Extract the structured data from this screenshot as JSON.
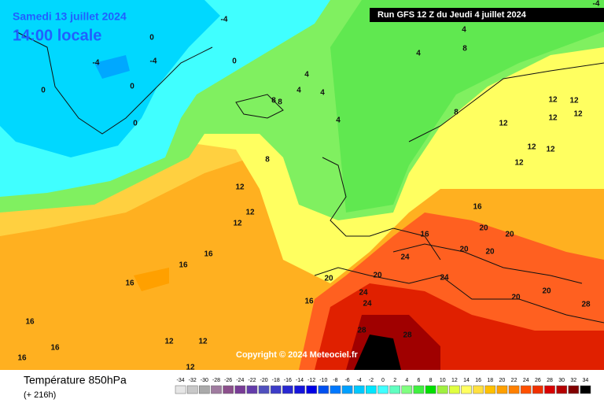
{
  "header": {
    "date": "Samedi 13 juillet 2024",
    "time": "14:00 locale",
    "run": "Run GFS 12 Z du Jeudi 4 juillet 2024"
  },
  "copyright": "Copyright © 2024 Meteociel.fr",
  "footer": {
    "title": "Température 850hPa",
    "lead": "(+ 216h)"
  },
  "scale": {
    "values": [
      -34,
      -32,
      -30,
      -28,
      -26,
      -24,
      -22,
      -20,
      -18,
      -16,
      -14,
      -12,
      -10,
      -8,
      -6,
      -4,
      -2,
      0,
      2,
      4,
      6,
      8,
      10,
      12,
      14,
      16,
      18,
      20,
      22,
      24,
      26,
      28,
      30,
      32,
      34
    ],
    "colors": [
      "#e6e6e6",
      "#c8c8c8",
      "#aaaaaa",
      "#a07ca0",
      "#8c508c",
      "#783c96",
      "#643caa",
      "#5050be",
      "#3c3cc8",
      "#2828d2",
      "#1414dc",
      "#0000e6",
      "#0050f0",
      "#0078ff",
      "#00a0ff",
      "#00c8ff",
      "#00e6ff",
      "#40ffff",
      "#60ffc0",
      "#80ff80",
      "#40f040",
      "#00e000",
      "#a0f040",
      "#e0ff40",
      "#ffff60",
      "#ffe040",
      "#ffc000",
      "#ffa000",
      "#ff8000",
      "#ff5000",
      "#f03000",
      "#d80000",
      "#b40000",
      "#800000",
      "#000000"
    ]
  },
  "contour_labels": [
    "-4",
    "-4",
    "0",
    "0",
    "-4",
    "-4",
    "0",
    "0",
    "0",
    "4",
    "4",
    "4",
    "8",
    "8",
    "4",
    "4",
    "8",
    "8",
    "8",
    "12",
    "12",
    "12",
    "12",
    "12",
    "12",
    "12",
    "12",
    "12",
    "12",
    "12",
    "16",
    "16",
    "16",
    "16",
    "16",
    "20",
    "20",
    "20",
    "20",
    "20",
    "24",
    "24",
    "24",
    "24",
    "28",
    "28",
    "20",
    "20",
    "20",
    "28",
    "12",
    "12",
    "12",
    "16",
    "16",
    "16",
    "16",
    "4"
  ]
}
